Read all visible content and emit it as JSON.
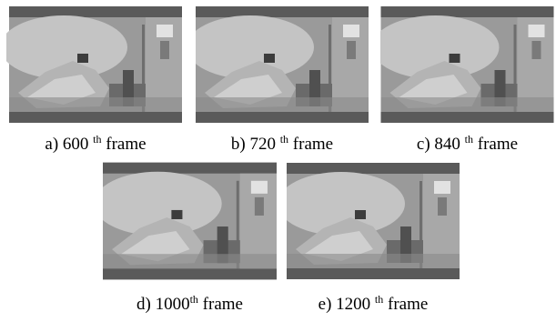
{
  "figure": {
    "panels": [
      {
        "label": "a) 600",
        "sup": "th",
        "text": "frame"
      },
      {
        "label": "b) 720",
        "sup": "th",
        "text": "frame"
      },
      {
        "label": "c) 840",
        "sup": "th",
        "text": "frame"
      },
      {
        "label": "d) 1000",
        "sup": "th",
        "text": "frame"
      },
      {
        "label": "e) 1200",
        "sup": "th",
        "text": "frame"
      }
    ]
  }
}
